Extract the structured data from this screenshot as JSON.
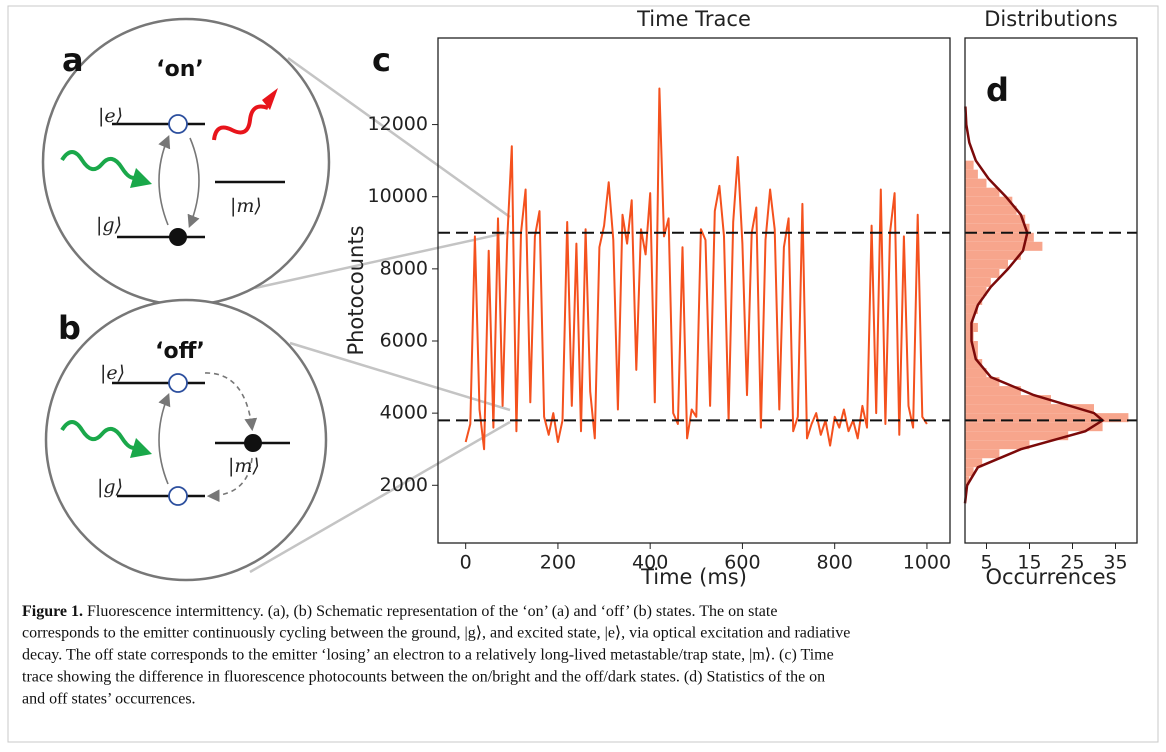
{
  "diagram": {
    "panels": [
      {
        "letter": "a",
        "state": "‘on’",
        "e": "|e⟩",
        "g": "|g⟩",
        "m": "|m⟩"
      },
      {
        "letter": "b",
        "state": "‘off’",
        "e": "|e⟩",
        "g": "|g⟩",
        "m": "|m⟩"
      }
    ]
  },
  "caption": {
    "label": "Figure 1.",
    "lines": [
      " Fluorescence intermittency. (a), (b) Schematic representation of the ‘on’ (a) and ‘off’ (b) states. The on state",
      "corresponds to the emitter continuously cycling between the ground, |g⟩, and excited state, |e⟩, via optical excitation and radiative",
      "decay. The off state corresponds to the emitter ‘losing’ an electron to a relatively long-lived metastable/trap state, |m⟩. (c) Time",
      "trace showing the difference in fluorescence photocounts between the on/bright and the off/dark states. (d) Statistics of the on",
      "and off states’ occurrences."
    ]
  },
  "chart_data": [
    {
      "type": "line",
      "panel": "c",
      "title": "Time Trace",
      "xlabel": "Time (ms)",
      "ylabel": "Photocounts",
      "color": "#f4511e",
      "x": [
        0,
        10,
        20,
        30,
        40,
        50,
        60,
        70,
        80,
        90,
        100,
        110,
        120,
        130,
        140,
        150,
        160,
        170,
        180,
        190,
        200,
        210,
        220,
        230,
        240,
        250,
        260,
        270,
        280,
        290,
        300,
        310,
        320,
        330,
        340,
        350,
        360,
        370,
        380,
        390,
        400,
        410,
        420,
        430,
        440,
        450,
        460,
        470,
        480,
        490,
        500,
        510,
        520,
        530,
        540,
        550,
        560,
        570,
        580,
        590,
        600,
        610,
        620,
        630,
        640,
        650,
        660,
        670,
        680,
        690,
        700,
        710,
        720,
        730,
        740,
        750,
        760,
        770,
        780,
        790,
        800,
        810,
        820,
        830,
        840,
        850,
        860,
        870,
        880,
        890,
        900,
        910,
        920,
        930,
        940,
        950,
        960,
        970,
        980,
        990,
        1000
      ],
      "values": [
        3200,
        3700,
        8900,
        4100,
        3000,
        8500,
        3600,
        9400,
        4200,
        8800,
        11400,
        3500,
        9000,
        10200,
        4300,
        8900,
        9600,
        3900,
        3400,
        4000,
        3200,
        3800,
        9300,
        4200,
        8700,
        3500,
        9100,
        4600,
        3300,
        8600,
        9200,
        10400,
        8800,
        4100,
        9500,
        8700,
        9900,
        5200,
        9100,
        8400,
        10100,
        4300,
        13000,
        8900,
        9400,
        4000,
        3700,
        8600,
        3300,
        4100,
        3900,
        9100,
        8800,
        4200,
        9600,
        10300,
        8900,
        3800,
        9300,
        11100,
        8700,
        4500,
        9000,
        9700,
        3600,
        8800,
        10200,
        9100,
        4100,
        8600,
        9400,
        3500,
        3900,
        9800,
        3300,
        3700,
        4000,
        3400,
        3800,
        3100,
        3900,
        3600,
        4100,
        3500,
        3800,
        3300,
        4200,
        3600,
        9200,
        4000,
        10200,
        3700,
        9000,
        10100,
        3400,
        8900,
        4200,
        3600,
        9500,
        3900,
        3700
      ],
      "xlim": [
        -60,
        1050
      ],
      "ylim": [
        400,
        14400
      ],
      "xticks": [
        0,
        200,
        400,
        600,
        800,
        1000
      ],
      "yticks": [
        2000,
        4000,
        6000,
        8000,
        10000,
        12000
      ],
      "hlines": [
        9000,
        3800
      ]
    },
    {
      "type": "histogram",
      "orientation": "horizontal",
      "panel": "d",
      "title": "Distributions",
      "xlabel": "Occurrences",
      "color": "#f7a58c",
      "bins": [
        2000,
        2250,
        2500,
        2750,
        3000,
        3250,
        3500,
        3750,
        4000,
        4250,
        4500,
        4750,
        5000,
        5250,
        5500,
        5750,
        6000,
        6250,
        6500,
        6750,
        7000,
        7250,
        7500,
        7750,
        8000,
        8250,
        8500,
        8750,
        9000,
        9250,
        9500,
        9750,
        10000,
        10250,
        10500,
        10750,
        11000
      ],
      "counts": [
        1,
        2,
        4,
        8,
        15,
        24,
        32,
        38,
        30,
        20,
        13,
        8,
        5,
        4,
        3,
        3,
        2,
        3,
        2,
        3,
        4,
        5,
        6,
        8,
        10,
        13,
        18,
        16,
        15,
        14,
        12,
        11,
        8,
        5,
        3,
        2
      ],
      "fit": {
        "color": "#7b0a0a",
        "y": [
          1500,
          2000,
          2500,
          3000,
          3500,
          3800,
          4000,
          4500,
          5000,
          5500,
          6000,
          6500,
          7000,
          7500,
          8000,
          8500,
          9000,
          9500,
          10000,
          10500,
          11000,
          11500,
          12000,
          12500
        ],
        "values": [
          0,
          0.5,
          3,
          13,
          28,
          32,
          30,
          16,
          6,
          2.5,
          1.5,
          1.5,
          3,
          6,
          10,
          13.5,
          14.5,
          13,
          9.5,
          5.5,
          2.5,
          1,
          0.3,
          0.1
        ]
      },
      "xlim": [
        0,
        40
      ],
      "ylim": [
        400,
        14400
      ],
      "xticks": [
        5,
        15,
        25,
        35
      ],
      "hlines": [
        9000,
        3800
      ]
    }
  ]
}
